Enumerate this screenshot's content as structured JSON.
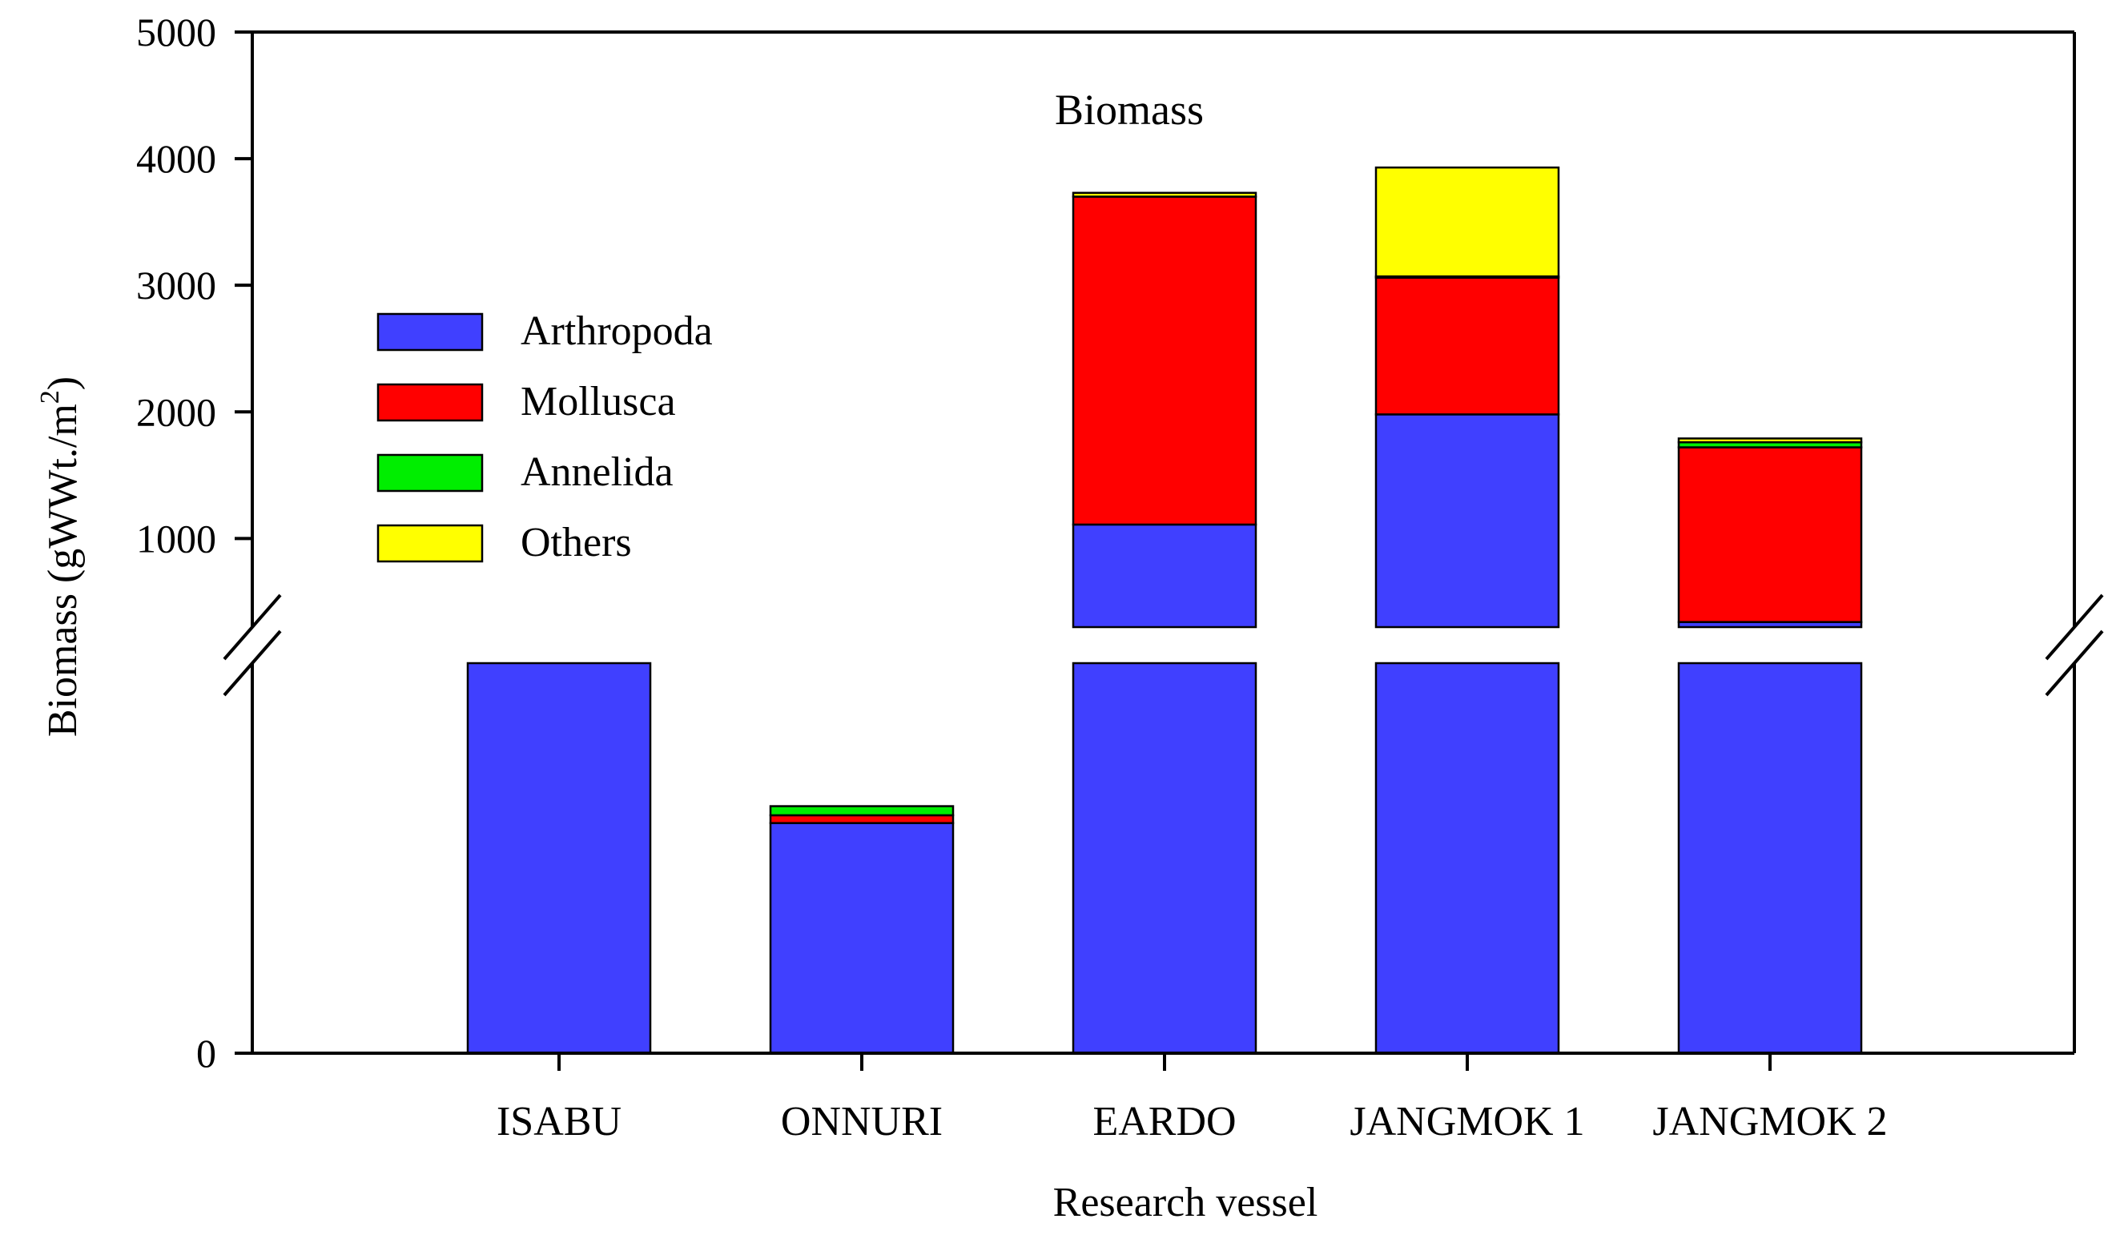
{
  "chart_data": {
    "type": "bar",
    "stacked": true,
    "title": "Biomass",
    "xlabel": "Research vessel",
    "ylabel": "Biomass (gWWt./m",
    "ylabel_superscript": "2",
    "ylabel_close": ")",
    "categories": [
      "ISABU",
      "ONNURI",
      "EARDO",
      "JANGMOK 1",
      "JANGMOK 2"
    ],
    "axis_break": true,
    "lower_segment": {
      "ylim": [
        0,
        300
      ],
      "tick_labels": [
        "0"
      ],
      "ticks": [
        0
      ]
    },
    "upper_segment": {
      "ylim": [
        300,
        5000
      ],
      "tick_labels": [
        "1000",
        "2000",
        "3000",
        "4000",
        "5000"
      ],
      "ticks": [
        1000,
        2000,
        3000,
        4000,
        5000
      ]
    },
    "series": [
      {
        "name": "Arthropoda",
        "color": "#4040FF",
        "values": [
          300,
          177,
          1110,
          1980,
          340
        ]
      },
      {
        "name": "Mollusca",
        "color": "#FF0000",
        "values": [
          0,
          6,
          2590,
          1080,
          1380
        ]
      },
      {
        "name": "Annelida",
        "color": "#00EE00",
        "values": [
          0,
          7,
          0,
          10,
          40
        ]
      },
      {
        "name": "Others",
        "color": "#FFFF00",
        "values": [
          0,
          0,
          30,
          860,
          30
        ]
      }
    ],
    "legend": {
      "position": "upper-left"
    },
    "grid": false
  }
}
